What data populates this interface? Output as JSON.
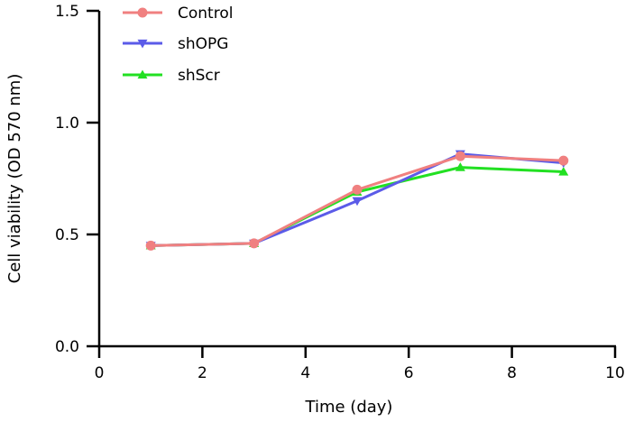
{
  "chart_data": {
    "type": "line",
    "title": "",
    "xlabel": "Time (day)",
    "ylabel": "Cell viability (OD 570 nm)",
    "xlim": [
      0,
      10
    ],
    "ylim": [
      0,
      1.5
    ],
    "xticks": [
      "0",
      "2",
      "4",
      "6",
      "8",
      "10"
    ],
    "yticks": [
      "0.0",
      "0.5",
      "1.0",
      "1.5"
    ],
    "grid": false,
    "legend_position": "top-left",
    "series": [
      {
        "name": "Control",
        "color": "#f08080",
        "marker": "circle",
        "x": [
          1,
          3,
          5,
          7,
          9
        ],
        "y": [
          0.45,
          0.46,
          0.7,
          0.85,
          0.83
        ]
      },
      {
        "name": "shOPG",
        "color": "#5b5be8",
        "marker": "triangle-down",
        "x": [
          1,
          3,
          5,
          7,
          9
        ],
        "y": [
          0.45,
          0.46,
          0.65,
          0.86,
          0.82
        ]
      },
      {
        "name": "shScr",
        "color": "#22e022",
        "marker": "triangle-up",
        "x": [
          1,
          3,
          5,
          7,
          9
        ],
        "y": [
          0.45,
          0.46,
          0.69,
          0.8,
          0.78
        ]
      }
    ]
  }
}
